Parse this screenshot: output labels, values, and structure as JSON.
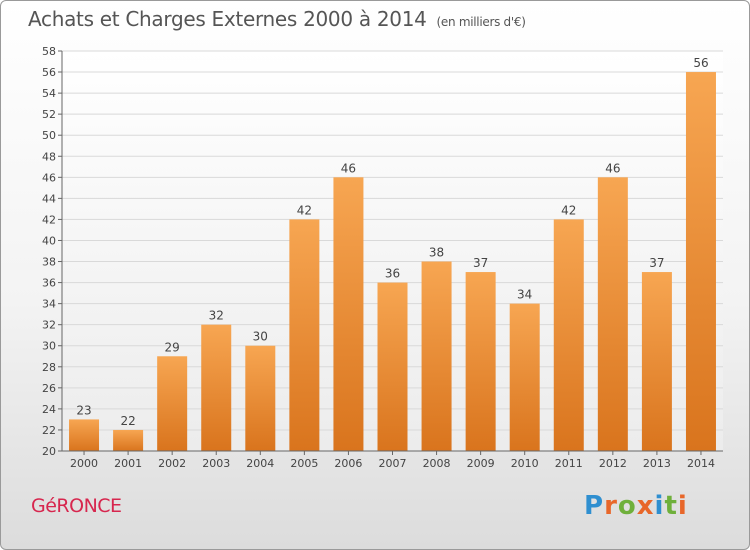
{
  "title": "Achats et Charges Externes 2000 à 2014",
  "unit": "(en milliers d'€)",
  "commune": "GéRONCE",
  "logo": {
    "letters": [
      "P",
      "r",
      "o",
      "x",
      "i",
      "t",
      "i"
    ],
    "colors": [
      "#2f8fd0",
      "#e8672a",
      "#6fb03b",
      "#e8672a",
      "#2f8fd0",
      "#6fb03b",
      "#e8672a"
    ]
  },
  "colors": {
    "bar_top": "#f7a652",
    "bar_bottom": "#d9741d",
    "grid": "#d9d9d9",
    "axis": "#666666",
    "text": "#444444"
  },
  "chart_data": {
    "type": "bar",
    "categories": [
      "2000",
      "2001",
      "2002",
      "2003",
      "2004",
      "2005",
      "2006",
      "2007",
      "2008",
      "2009",
      "2010",
      "2011",
      "2012",
      "2013",
      "2014"
    ],
    "values": [
      23,
      22,
      29,
      32,
      30,
      42,
      46,
      36,
      38,
      37,
      34,
      42,
      46,
      37,
      56
    ],
    "ylim": [
      20,
      58
    ],
    "ytick_step": 2,
    "grid": true,
    "data_labels": true
  }
}
